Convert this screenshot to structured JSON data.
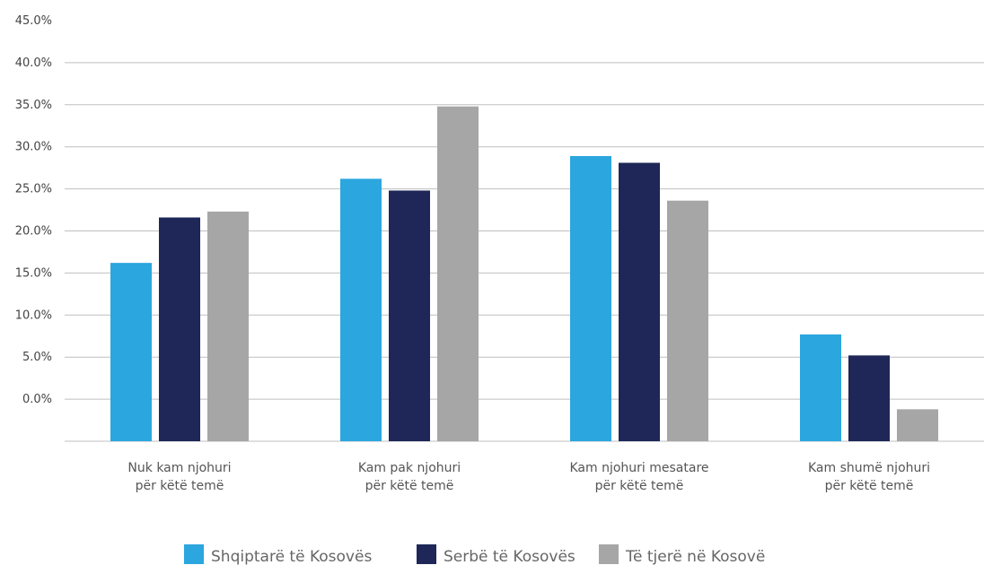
{
  "chart_data": {
    "type": "bar",
    "categories": [
      [
        "Nuk kam njohuri",
        "për këtë temë"
      ],
      [
        "Kam pak njohuri",
        "për këtë temë"
      ],
      [
        "Kam njohuri mesatare",
        "për këtë temë"
      ],
      [
        "Kam shumë njohuri",
        "për këtë temë"
      ]
    ],
    "series": [
      {
        "name": "Shqiptarë të Kosovës",
        "color": "#2ba6de",
        "values": [
          16.2,
          26.2,
          28.9,
          7.7
        ]
      },
      {
        "name": "Serbë të Kosovës",
        "color": "#1e2757",
        "values": [
          21.6,
          24.8,
          28.1,
          5.2
        ]
      },
      {
        "name": "Të tjerë në Kosovë",
        "color": "#a6a6a6",
        "values": [
          22.3,
          34.8,
          23.6,
          -1.2
        ]
      }
    ],
    "y_ticks": [
      "45.0%",
      "40.0%",
      "35.0%",
      "30.0%",
      "25.0%",
      "20.0%",
      "15.0%",
      "10.0%",
      "5.0%",
      "0.0%"
    ],
    "ylim": [
      -5,
      45
    ],
    "grid": true,
    "legend_position": "bottom",
    "title": "",
    "xlabel": "",
    "ylabel": ""
  }
}
